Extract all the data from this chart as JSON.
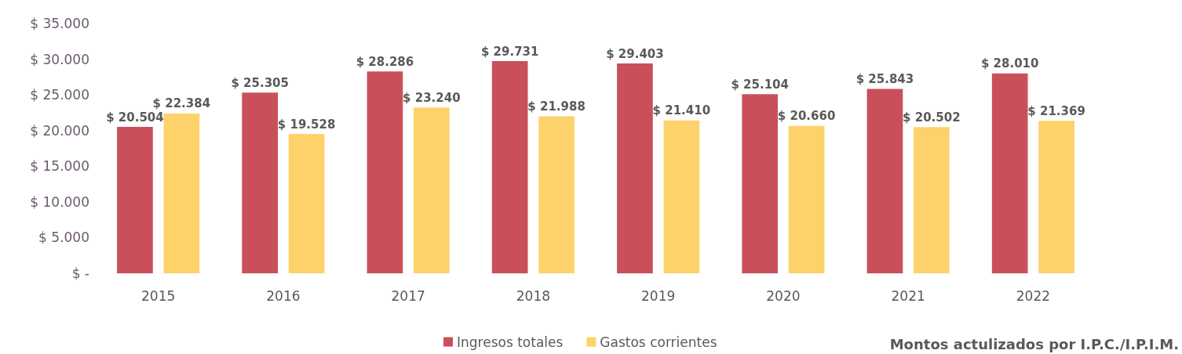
{
  "chart_data": {
    "type": "bar",
    "categories": [
      "2015",
      "2016",
      "2017",
      "2018",
      "2019",
      "2020",
      "2021",
      "2022"
    ],
    "series": [
      {
        "name": "Ingresos totales",
        "color": "#c9505b",
        "values": [
          20504,
          25305,
          28286,
          29731,
          29403,
          25104,
          25843,
          28010
        ],
        "value_labels": [
          "$ 20.504",
          "$ 25.305",
          "$ 28.286",
          "$ 29.731",
          "$ 29.403",
          "$ 25.104",
          "$ 25.843",
          "$ 28.010"
        ]
      },
      {
        "name": "Gastos corrientes",
        "color": "#fdd26b",
        "values": [
          22384,
          19528,
          23240,
          21988,
          21410,
          20660,
          20502,
          21369
        ],
        "value_labels": [
          "$ 22.384",
          "$ 19.528",
          "$ 23.240",
          "$ 21.988",
          "$ 21.410",
          "$ 20.660",
          "$ 20.502",
          "$ 21.369"
        ]
      }
    ],
    "ylim": [
      0,
      35000
    ],
    "yticks": [
      {
        "value": 0,
        "label": "$ -"
      },
      {
        "value": 5000,
        "label": "$ 5.000"
      },
      {
        "value": 10000,
        "label": "$ 10.000"
      },
      {
        "value": 15000,
        "label": "$ 15.000"
      },
      {
        "value": 20000,
        "label": "$ 20.000"
      },
      {
        "value": 25000,
        "label": "$ 25.000"
      },
      {
        "value": 30000,
        "label": "$ 30.000"
      },
      {
        "value": 35000,
        "label": "$ 35.000"
      }
    ],
    "legend": "bottom",
    "grid": false,
    "annotations": [
      "Montos actulizados por I.P.C./I.P.I.M."
    ]
  }
}
